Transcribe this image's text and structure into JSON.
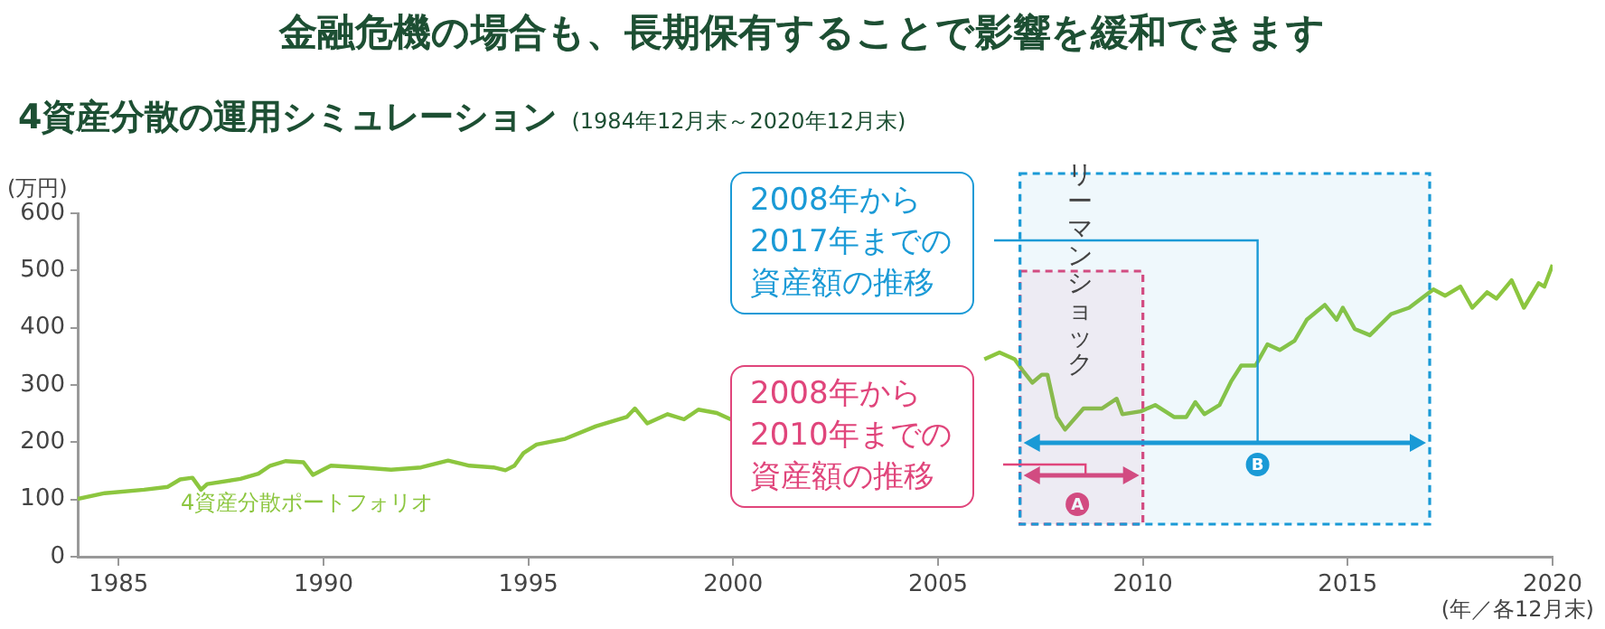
{
  "chart_data": {
    "type": "line",
    "title": "金融危機の場合も、長期保有することで影響を緩和できます",
    "subtitle": "4資産分散の運用シミュレーション",
    "ylabel": "(万円)",
    "xlabel": "(年／各12月末)",
    "annotations": [
      "(1984年12月末～2020年12月末)",
      "リーマンショック",
      "2008年から2017年までの資産額の推移",
      "2008年から2010年までの資産額の推移"
    ],
    "xlim": [
      1984,
      2020
    ],
    "xticks": [
      1985,
      1990,
      1995,
      2000,
      2005,
      2010,
      2015,
      2020
    ],
    "ylim": [
      0,
      600
    ],
    "yticks": [
      0,
      100,
      200,
      300,
      400,
      500,
      600
    ],
    "grid": false,
    "marker": "none",
    "line_style": "solid",
    "bands": [
      {
        "axis": "x",
        "from": 2007,
        "to": 2010,
        "label": "A",
        "color": "#e0457b"
      },
      {
        "axis": "x",
        "from": 2007,
        "to": 2017,
        "label": "B",
        "color": "#1a9ad6"
      }
    ],
    "series": [
      {
        "name": "4資産分散ポートフォリオ",
        "color": "#8cc63f",
        "x": [
          1984,
          1984.66,
          1985.62,
          1986.2,
          1986.5,
          1986.8,
          1987.01,
          1987.16,
          1987.97,
          1988.41,
          1988.7,
          1989.07,
          1989.51,
          1989.74,
          1990.18,
          1990.91,
          1991.65,
          1992.38,
          1993.04,
          1993.56,
          1994.15,
          1994.44,
          1994.66,
          1994.88,
          1995.2,
          1995.9,
          1996.65,
          1997.4,
          1997.6,
          1997.9,
          1998.4,
          1998.8,
          1999.15,
          1999.6,
          2000,
          2003,
          2006.13,
          2006.5,
          2006.87,
          2007.09,
          2007.3,
          2007.53,
          2007.67,
          2007.9,
          2008.1,
          2008.55,
          2009,
          2009.36,
          2009.5,
          2009.95,
          2010.3,
          2010.76,
          2011.06,
          2011.28,
          2011.5,
          2011.87,
          2012.16,
          2012.4,
          2012.75,
          2013.04,
          2013.34,
          2013.7,
          2014,
          2014.44,
          2014.73,
          2014.88,
          2015.17,
          2015.54,
          2016.06,
          2016.5,
          2017.09,
          2017.38,
          2017.75,
          2018.04,
          2018.4,
          2018.63,
          2019,
          2019.3,
          2019.66,
          2019.8,
          2020
        ],
        "values": [
          101,
          111,
          117,
          122,
          135,
          138,
          117,
          127,
          136,
          145,
          159,
          167,
          165,
          143,
          159,
          156,
          152,
          156,
          168,
          159,
          156,
          151,
          159,
          181,
          196,
          206,
          228,
          244,
          259,
          233,
          249,
          240,
          257,
          251,
          238,
          null,
          345,
          357,
          345,
          323,
          304,
          318,
          318,
          244,
          222,
          259,
          259,
          276,
          249,
          254,
          265,
          244,
          244,
          270,
          249,
          265,
          307,
          334,
          334,
          371,
          361,
          377,
          414,
          440,
          414,
          435,
          398,
          387,
          424,
          435,
          467,
          456,
          472,
          435,
          462,
          451,
          483,
          435,
          478,
          472,
          510
        ]
      }
    ]
  }
}
